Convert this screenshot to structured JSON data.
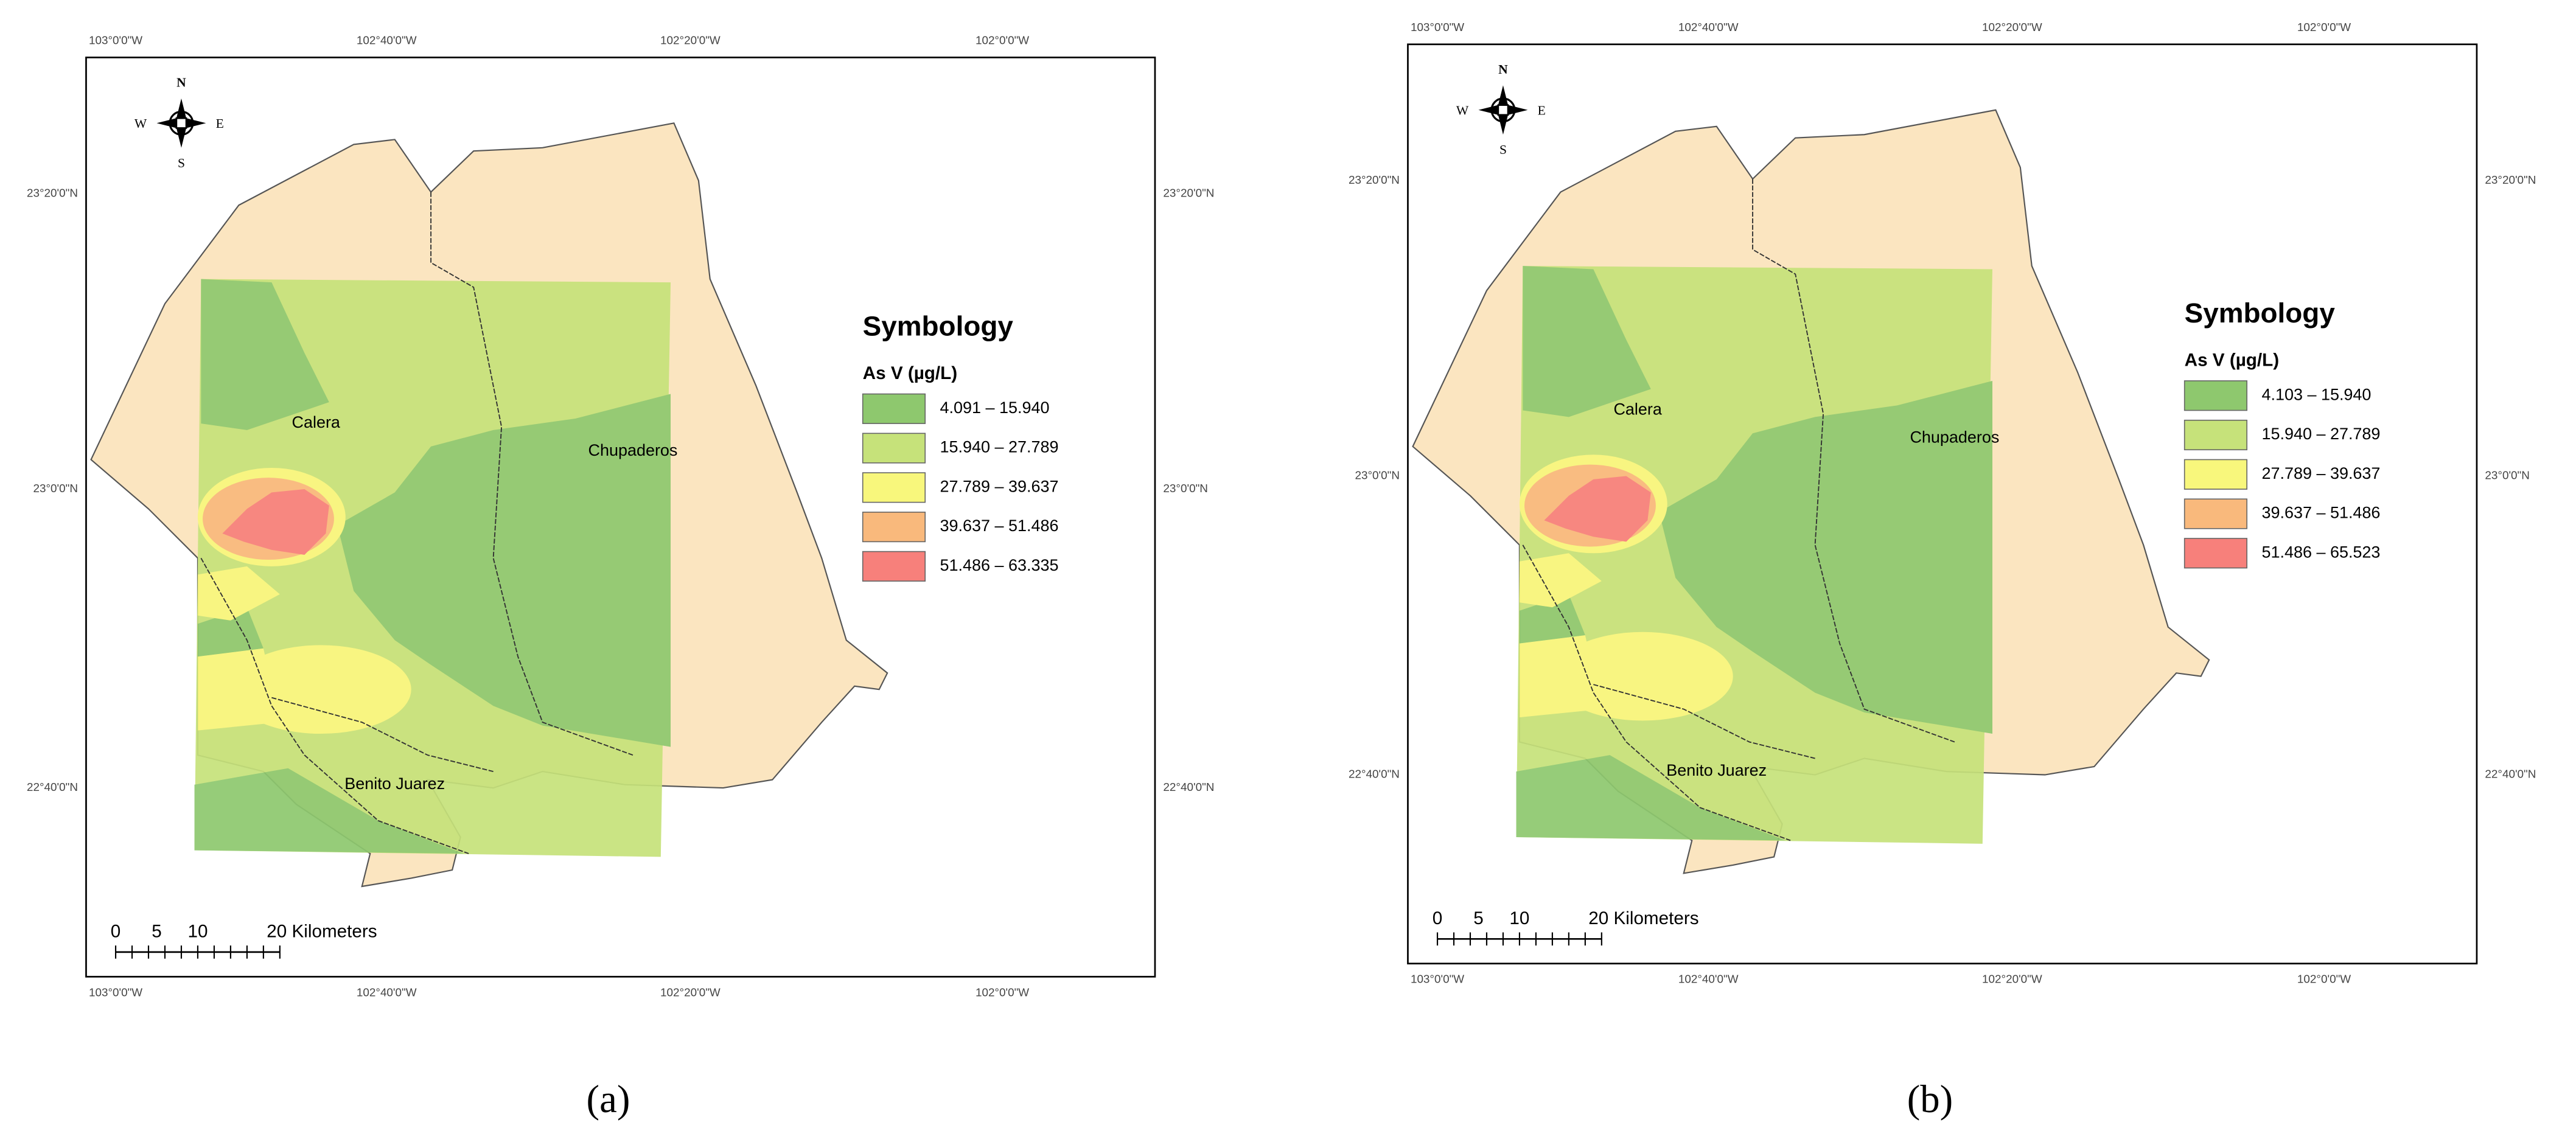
{
  "panels": [
    {
      "label": "(a)",
      "top_labels": [
        "103°0'0\"W",
        "102°40'0\"W",
        "102°20'0\"W",
        "102°0'0\"W"
      ],
      "bottom_labels": [
        "103°0'0\"W",
        "102°40'0\"W",
        "102°20'0\"W",
        "102°0'0\"W"
      ],
      "left_labels": [
        "23°20'0\"N",
        "23°0'0\"N",
        "22°40'0\"N"
      ],
      "right_labels": [
        "23°20'0\"N",
        "23°0'0\"N",
        "22°40'0\"N"
      ],
      "compass": {
        "n": "N",
        "s": "S",
        "e": "E",
        "w": "W"
      },
      "places": [
        "Calera",
        "Chupaderos",
        "Benito Juarez"
      ],
      "legend": {
        "title": "Symbology",
        "subtitle": "As V (µg/L)",
        "classes": [
          {
            "label": "4.091 – 15.940",
            "color": "#8ec86e"
          },
          {
            "label": "15.940 – 27.789",
            "color": "#c6e27a"
          },
          {
            "label": "27.789 – 39.637",
            "color": "#f8f77c"
          },
          {
            "label": "39.637 – 51.486",
            "color": "#f9b97c"
          },
          {
            "label": "51.486 – 63.335",
            "color": "#f7807b"
          }
        ]
      },
      "scale_bar": [
        "0",
        "5",
        "10",
        "20 Kilometers"
      ]
    },
    {
      "label": "(b)",
      "top_labels": [
        "103°0'0\"W",
        "102°40'0\"W",
        "102°20'0\"W",
        "102°0'0\"W"
      ],
      "bottom_labels": [
        "103°0'0\"W",
        "102°40'0\"W",
        "102°20'0\"W",
        "102°0'0\"W"
      ],
      "left_labels": [
        "23°20'0\"N",
        "23°0'0\"N",
        "22°40'0\"N"
      ],
      "right_labels": [
        "23°20'0\"N",
        "23°0'0\"N",
        "22°40'0\"N"
      ],
      "compass": {
        "n": "N",
        "s": "S",
        "e": "E",
        "w": "W"
      },
      "places": [
        "Calera",
        "Chupaderos",
        "Benito Juarez"
      ],
      "legend": {
        "title": "Symbology",
        "subtitle": "As V (µg/L)",
        "classes": [
          {
            "label": "4.103 – 15.940",
            "color": "#8ec86e"
          },
          {
            "label": "15.940 – 27.789",
            "color": "#c6e27a"
          },
          {
            "label": "27.789 – 39.637",
            "color": "#f8f77c"
          },
          {
            "label": "39.637 – 51.486",
            "color": "#f9b97c"
          },
          {
            "label": "51.486 – 65.523",
            "color": "#f7807b"
          }
        ]
      },
      "scale_bar": [
        "0",
        "5",
        "10",
        "20 Kilometers"
      ]
    }
  ]
}
